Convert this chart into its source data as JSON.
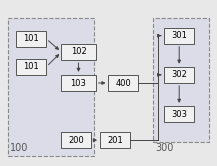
{
  "bg_color": "#e8e8e8",
  "box_fc": "#f0f0f0",
  "box_ec": "#555555",
  "dash_ec": "#888888",
  "boxes": {
    "101a": [
      0.07,
      0.72,
      0.14,
      0.1
    ],
    "101b": [
      0.07,
      0.55,
      0.14,
      0.1
    ],
    "102": [
      0.28,
      0.64,
      0.16,
      0.1
    ],
    "103": [
      0.28,
      0.45,
      0.16,
      0.1
    ],
    "400": [
      0.5,
      0.45,
      0.14,
      0.1
    ],
    "200": [
      0.28,
      0.1,
      0.14,
      0.1
    ],
    "201": [
      0.46,
      0.1,
      0.14,
      0.1
    ],
    "301": [
      0.76,
      0.74,
      0.14,
      0.1
    ],
    "302": [
      0.76,
      0.5,
      0.14,
      0.1
    ],
    "303": [
      0.76,
      0.26,
      0.14,
      0.1
    ]
  },
  "labels": {
    "101a": "101",
    "101b": "101",
    "102": "102",
    "103": "103",
    "400": "400",
    "200": "200",
    "201": "201",
    "301": "301",
    "302": "302",
    "303": "303"
  },
  "group_labels": {
    "100": [
      0.04,
      0.07
    ],
    "300": [
      0.72,
      0.07
    ]
  },
  "group_boxes": {
    "100": [
      0.03,
      0.05,
      0.4,
      0.85
    ],
    "300": [
      0.71,
      0.14,
      0.26,
      0.76
    ]
  },
  "font_size": 6,
  "label_font_size": 7,
  "gx300": 0.71
}
